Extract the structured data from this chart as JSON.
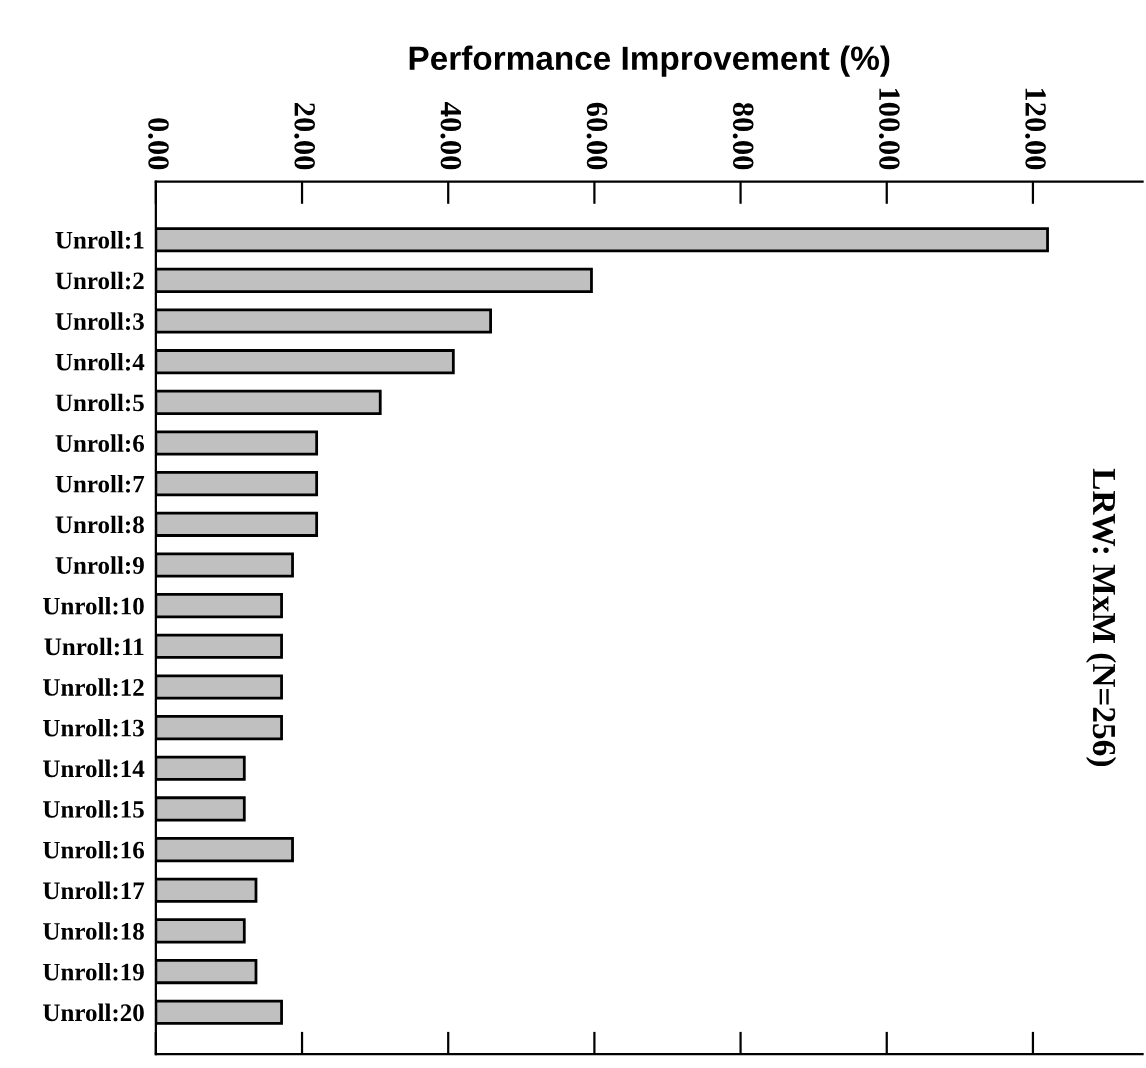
{
  "chart_data": {
    "type": "bar",
    "orientation": "horizontal",
    "title": "LRW: MxM (N=256)",
    "xlabel": "Performance Improvement (%)",
    "categories": [
      "Unroll:1",
      "Unroll:2",
      "Unroll:3",
      "Unroll:4",
      "Unroll:5",
      "Unroll:6",
      "Unroll:7",
      "Unroll:8",
      "Unroll:9",
      "Unroll:10",
      "Unroll:11",
      "Unroll:12",
      "Unroll:13",
      "Unroll:14",
      "Unroll:15",
      "Unroll:16",
      "Unroll:17",
      "Unroll:18",
      "Unroll:19",
      "Unroll:20"
    ],
    "values": [
      122,
      59.6,
      45.8,
      40.7,
      30.7,
      22,
      22,
      22,
      18.7,
      17.2,
      17.2,
      17.2,
      17.2,
      12.1,
      12.1,
      18.7,
      13.7,
      12.1,
      13.7,
      17.2
    ],
    "color": "#c0c0c0",
    "xlim": [
      0,
      135
    ],
    "xticks": [
      {
        "value": 0,
        "label": "0.00"
      },
      {
        "value": 20,
        "label": "20.00"
      },
      {
        "value": 40,
        "label": "40.00"
      },
      {
        "value": 60,
        "label": "60.00"
      },
      {
        "value": 80,
        "label": "80.00"
      },
      {
        "value": 100,
        "label": "100.00"
      },
      {
        "value": 120,
        "label": "120.00"
      }
    ],
    "grid": false,
    "legend": false
  }
}
